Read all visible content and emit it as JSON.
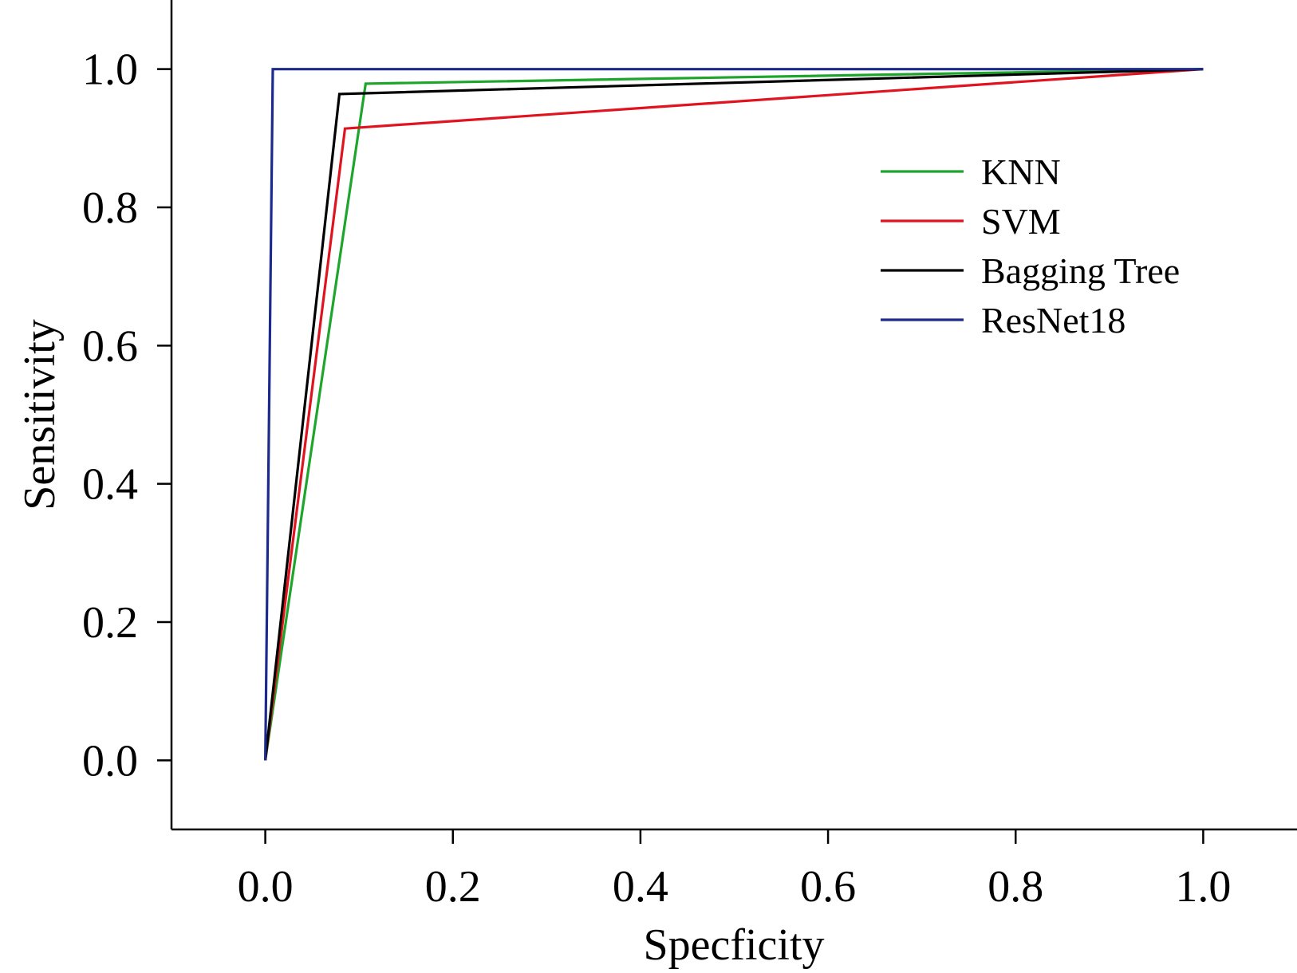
{
  "chart_data": {
    "type": "line",
    "title": "",
    "xlabel": "Specficity",
    "ylabel": "Sensitivity",
    "xlim": [
      -0.1,
      1.1
    ],
    "ylim": [
      -0.1,
      1.1
    ],
    "x_ticks": [
      "0.0",
      "0.2",
      "0.4",
      "0.6",
      "0.8",
      "1.0"
    ],
    "y_ticks": [
      "0.0",
      "0.2",
      "0.4",
      "0.6",
      "0.8",
      "1.0"
    ],
    "x_tick_values": [
      0,
      0.2,
      0.4,
      0.6,
      0.8,
      1.0
    ],
    "y_tick_values": [
      0,
      0.2,
      0.4,
      0.6,
      0.8,
      1.0
    ],
    "grid": false,
    "legend_position": "right",
    "series": [
      {
        "name": "KNN",
        "color": "#1ea52b",
        "x": [
          0,
          0.107,
          1.0
        ],
        "y": [
          0,
          0.979,
          1.0
        ]
      },
      {
        "name": "SVM",
        "color": "#e0131e",
        "x": [
          0,
          0.085,
          1.0
        ],
        "y": [
          0,
          0.914,
          1.0
        ]
      },
      {
        "name": "Bagging Tree",
        "color": "#000000",
        "x": [
          0,
          0.079,
          1.0
        ],
        "y": [
          0,
          0.964,
          1.0
        ]
      },
      {
        "name": "ResNet18",
        "color": "#1b2a8c",
        "x": [
          0,
          0.008,
          1.0
        ],
        "y": [
          0,
          1.0,
          1.0
        ]
      }
    ]
  }
}
